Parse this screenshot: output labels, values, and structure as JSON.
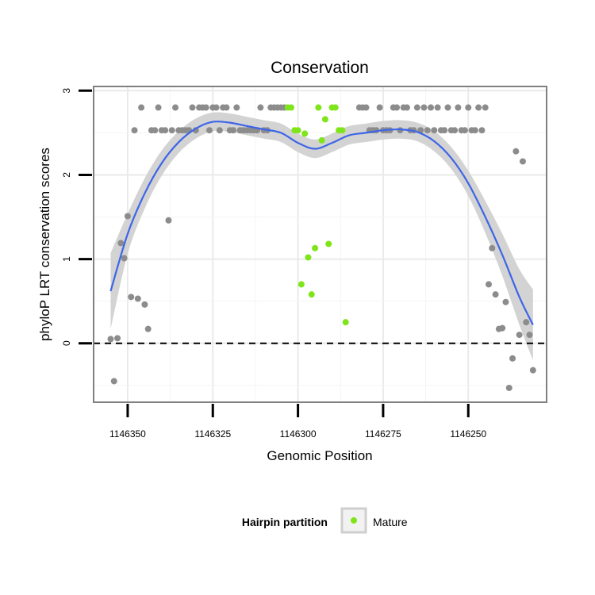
{
  "chart_data": {
    "type": "scatter",
    "title": "Conservation",
    "xlabel": "Genomic Position",
    "ylabel": "phyloP LRT conservation scores",
    "x_reversed": true,
    "xlim": [
      1146360,
      1146227
    ],
    "ylim": [
      -0.7,
      3.05
    ],
    "x_ticks": [
      1146350,
      1146325,
      1146300,
      1146275,
      1146250
    ],
    "x_tick_labels": [
      "1146350",
      "1146325",
      "1146300",
      "1146275",
      "1146250"
    ],
    "y_ticks": [
      0,
      1,
      2,
      3
    ],
    "y_tick_labels": [
      "0",
      "1",
      "2",
      "3"
    ],
    "grid": true,
    "reference_line": {
      "y": 0,
      "style": "dashed",
      "color": "#000000"
    },
    "legend": {
      "title": "Hairpin partition",
      "position": "bottom",
      "entries": [
        {
          "label": "Mature",
          "color": "#7fe51a"
        }
      ]
    },
    "colors": {
      "other": "#8c8c8c",
      "mature": "#7fe51a",
      "smooth": "#3d65e8",
      "ribbon": "#d3d3d3"
    },
    "series": [
      {
        "name": "",
        "color": "#8c8c8c",
        "points": [
          [
            1146355,
            0.05
          ],
          [
            1146353,
            0.06
          ],
          [
            1146354,
            -0.45
          ],
          [
            1146352,
            1.19
          ],
          [
            1146351,
            1.01
          ],
          [
            1146350,
            1.51
          ],
          [
            1146349,
            0.55
          ],
          [
            1146348,
            2.53
          ],
          [
            1146347,
            0.53
          ],
          [
            1146346,
            2.8
          ],
          [
            1146345,
            0.46
          ],
          [
            1146344,
            0.17
          ],
          [
            1146343,
            2.53
          ],
          [
            1146342,
            2.53
          ],
          [
            1146341,
            2.8
          ],
          [
            1146340,
            2.53
          ],
          [
            1146339,
            2.53
          ],
          [
            1146338,
            1.46
          ],
          [
            1146337,
            2.53
          ],
          [
            1146336,
            2.8
          ],
          [
            1146335,
            2.53
          ],
          [
            1146334,
            2.53
          ],
          [
            1146333,
            2.53
          ],
          [
            1146332,
            2.53
          ],
          [
            1146331,
            2.8
          ],
          [
            1146330,
            2.53
          ],
          [
            1146329,
            2.8
          ],
          [
            1146328,
            2.8
          ],
          [
            1146327,
            2.8
          ],
          [
            1146326,
            2.53
          ],
          [
            1146325,
            2.8
          ],
          [
            1146324,
            2.8
          ],
          [
            1146323,
            2.53
          ],
          [
            1146322,
            2.8
          ],
          [
            1146321,
            2.8
          ],
          [
            1146320,
            2.53
          ],
          [
            1146319,
            2.53
          ],
          [
            1146318,
            2.8
          ],
          [
            1146317,
            2.53
          ],
          [
            1146316,
            2.53
          ],
          [
            1146315,
            2.53
          ],
          [
            1146314,
            2.53
          ],
          [
            1146313,
            2.53
          ],
          [
            1146312,
            2.53
          ],
          [
            1146311,
            2.8
          ],
          [
            1146310,
            2.53
          ],
          [
            1146309,
            2.53
          ],
          [
            1146308,
            2.8
          ],
          [
            1146307,
            2.8
          ],
          [
            1146306,
            2.8
          ],
          [
            1146305,
            2.8
          ],
          [
            1146304,
            2.8
          ],
          [
            1146282,
            2.8
          ],
          [
            1146281,
            2.8
          ],
          [
            1146280,
            2.8
          ],
          [
            1146279,
            2.53
          ],
          [
            1146278,
            2.53
          ],
          [
            1146277,
            2.53
          ],
          [
            1146276,
            2.8
          ],
          [
            1146275,
            2.53
          ],
          [
            1146274,
            2.53
          ],
          [
            1146273,
            2.53
          ],
          [
            1146272,
            2.8
          ],
          [
            1146271,
            2.8
          ],
          [
            1146270,
            2.53
          ],
          [
            1146269,
            2.8
          ],
          [
            1146268,
            2.8
          ],
          [
            1146267,
            2.53
          ],
          [
            1146266,
            2.53
          ],
          [
            1146265,
            2.8
          ],
          [
            1146264,
            2.53
          ],
          [
            1146263,
            2.8
          ],
          [
            1146262,
            2.53
          ],
          [
            1146261,
            2.8
          ],
          [
            1146260,
            2.53
          ],
          [
            1146259,
            2.8
          ],
          [
            1146258,
            2.53
          ],
          [
            1146257,
            2.53
          ],
          [
            1146256,
            2.8
          ],
          [
            1146255,
            2.53
          ],
          [
            1146254,
            2.53
          ],
          [
            1146253,
            2.8
          ],
          [
            1146252,
            2.53
          ],
          [
            1146251,
            2.53
          ],
          [
            1146250,
            2.8
          ],
          [
            1146249,
            2.53
          ],
          [
            1146248,
            2.53
          ],
          [
            1146247,
            2.8
          ],
          [
            1146246,
            2.53
          ],
          [
            1146245,
            2.8
          ],
          [
            1146244,
            0.7
          ],
          [
            1146243,
            1.13
          ],
          [
            1146242,
            0.58
          ],
          [
            1146241,
            0.17
          ],
          [
            1146240,
            0.18
          ],
          [
            1146239,
            0.49
          ],
          [
            1146238,
            -0.53
          ],
          [
            1146237,
            -0.18
          ],
          [
            1146236,
            2.28
          ],
          [
            1146235,
            0.1
          ],
          [
            1146234,
            2.16
          ],
          [
            1146233,
            0.25
          ],
          [
            1146232,
            0.1
          ],
          [
            1146231,
            -0.32
          ]
        ]
      },
      {
        "name": "Mature",
        "color": "#7fe51a",
        "points": [
          [
            1146303,
            2.8
          ],
          [
            1146302,
            2.8
          ],
          [
            1146301,
            2.53
          ],
          [
            1146300,
            2.53
          ],
          [
            1146299,
            0.7
          ],
          [
            1146298,
            2.49
          ],
          [
            1146297,
            1.02
          ],
          [
            1146296,
            0.58
          ],
          [
            1146295,
            1.13
          ],
          [
            1146294,
            2.8
          ],
          [
            1146293,
            2.41
          ],
          [
            1146292,
            2.66
          ],
          [
            1146291,
            1.18
          ],
          [
            1146290,
            2.8
          ],
          [
            1146289,
            2.8
          ],
          [
            1146288,
            2.53
          ],
          [
            1146287,
            2.53
          ],
          [
            1146286,
            0.25
          ]
        ]
      }
    ],
    "smooth": {
      "x": [
        1146355,
        1146350,
        1146345,
        1146340,
        1146335,
        1146330,
        1146325,
        1146320,
        1146315,
        1146310,
        1146305,
        1146300,
        1146295,
        1146290,
        1146285,
        1146280,
        1146275,
        1146270,
        1146265,
        1146260,
        1146255,
        1146250,
        1146245,
        1146240,
        1146235,
        1146231
      ],
      "y": [
        0.62,
        1.3,
        1.78,
        2.14,
        2.39,
        2.55,
        2.63,
        2.62,
        2.58,
        2.54,
        2.5,
        2.38,
        2.31,
        2.38,
        2.47,
        2.5,
        2.53,
        2.54,
        2.51,
        2.4,
        2.2,
        1.9,
        1.5,
        1.05,
        0.55,
        0.22
      ],
      "band": [
        0.45,
        0.24,
        0.18,
        0.15,
        0.13,
        0.12,
        0.11,
        0.11,
        0.11,
        0.11,
        0.11,
        0.11,
        0.11,
        0.11,
        0.11,
        0.11,
        0.11,
        0.11,
        0.11,
        0.12,
        0.13,
        0.15,
        0.19,
        0.25,
        0.33,
        0.42
      ]
    }
  }
}
